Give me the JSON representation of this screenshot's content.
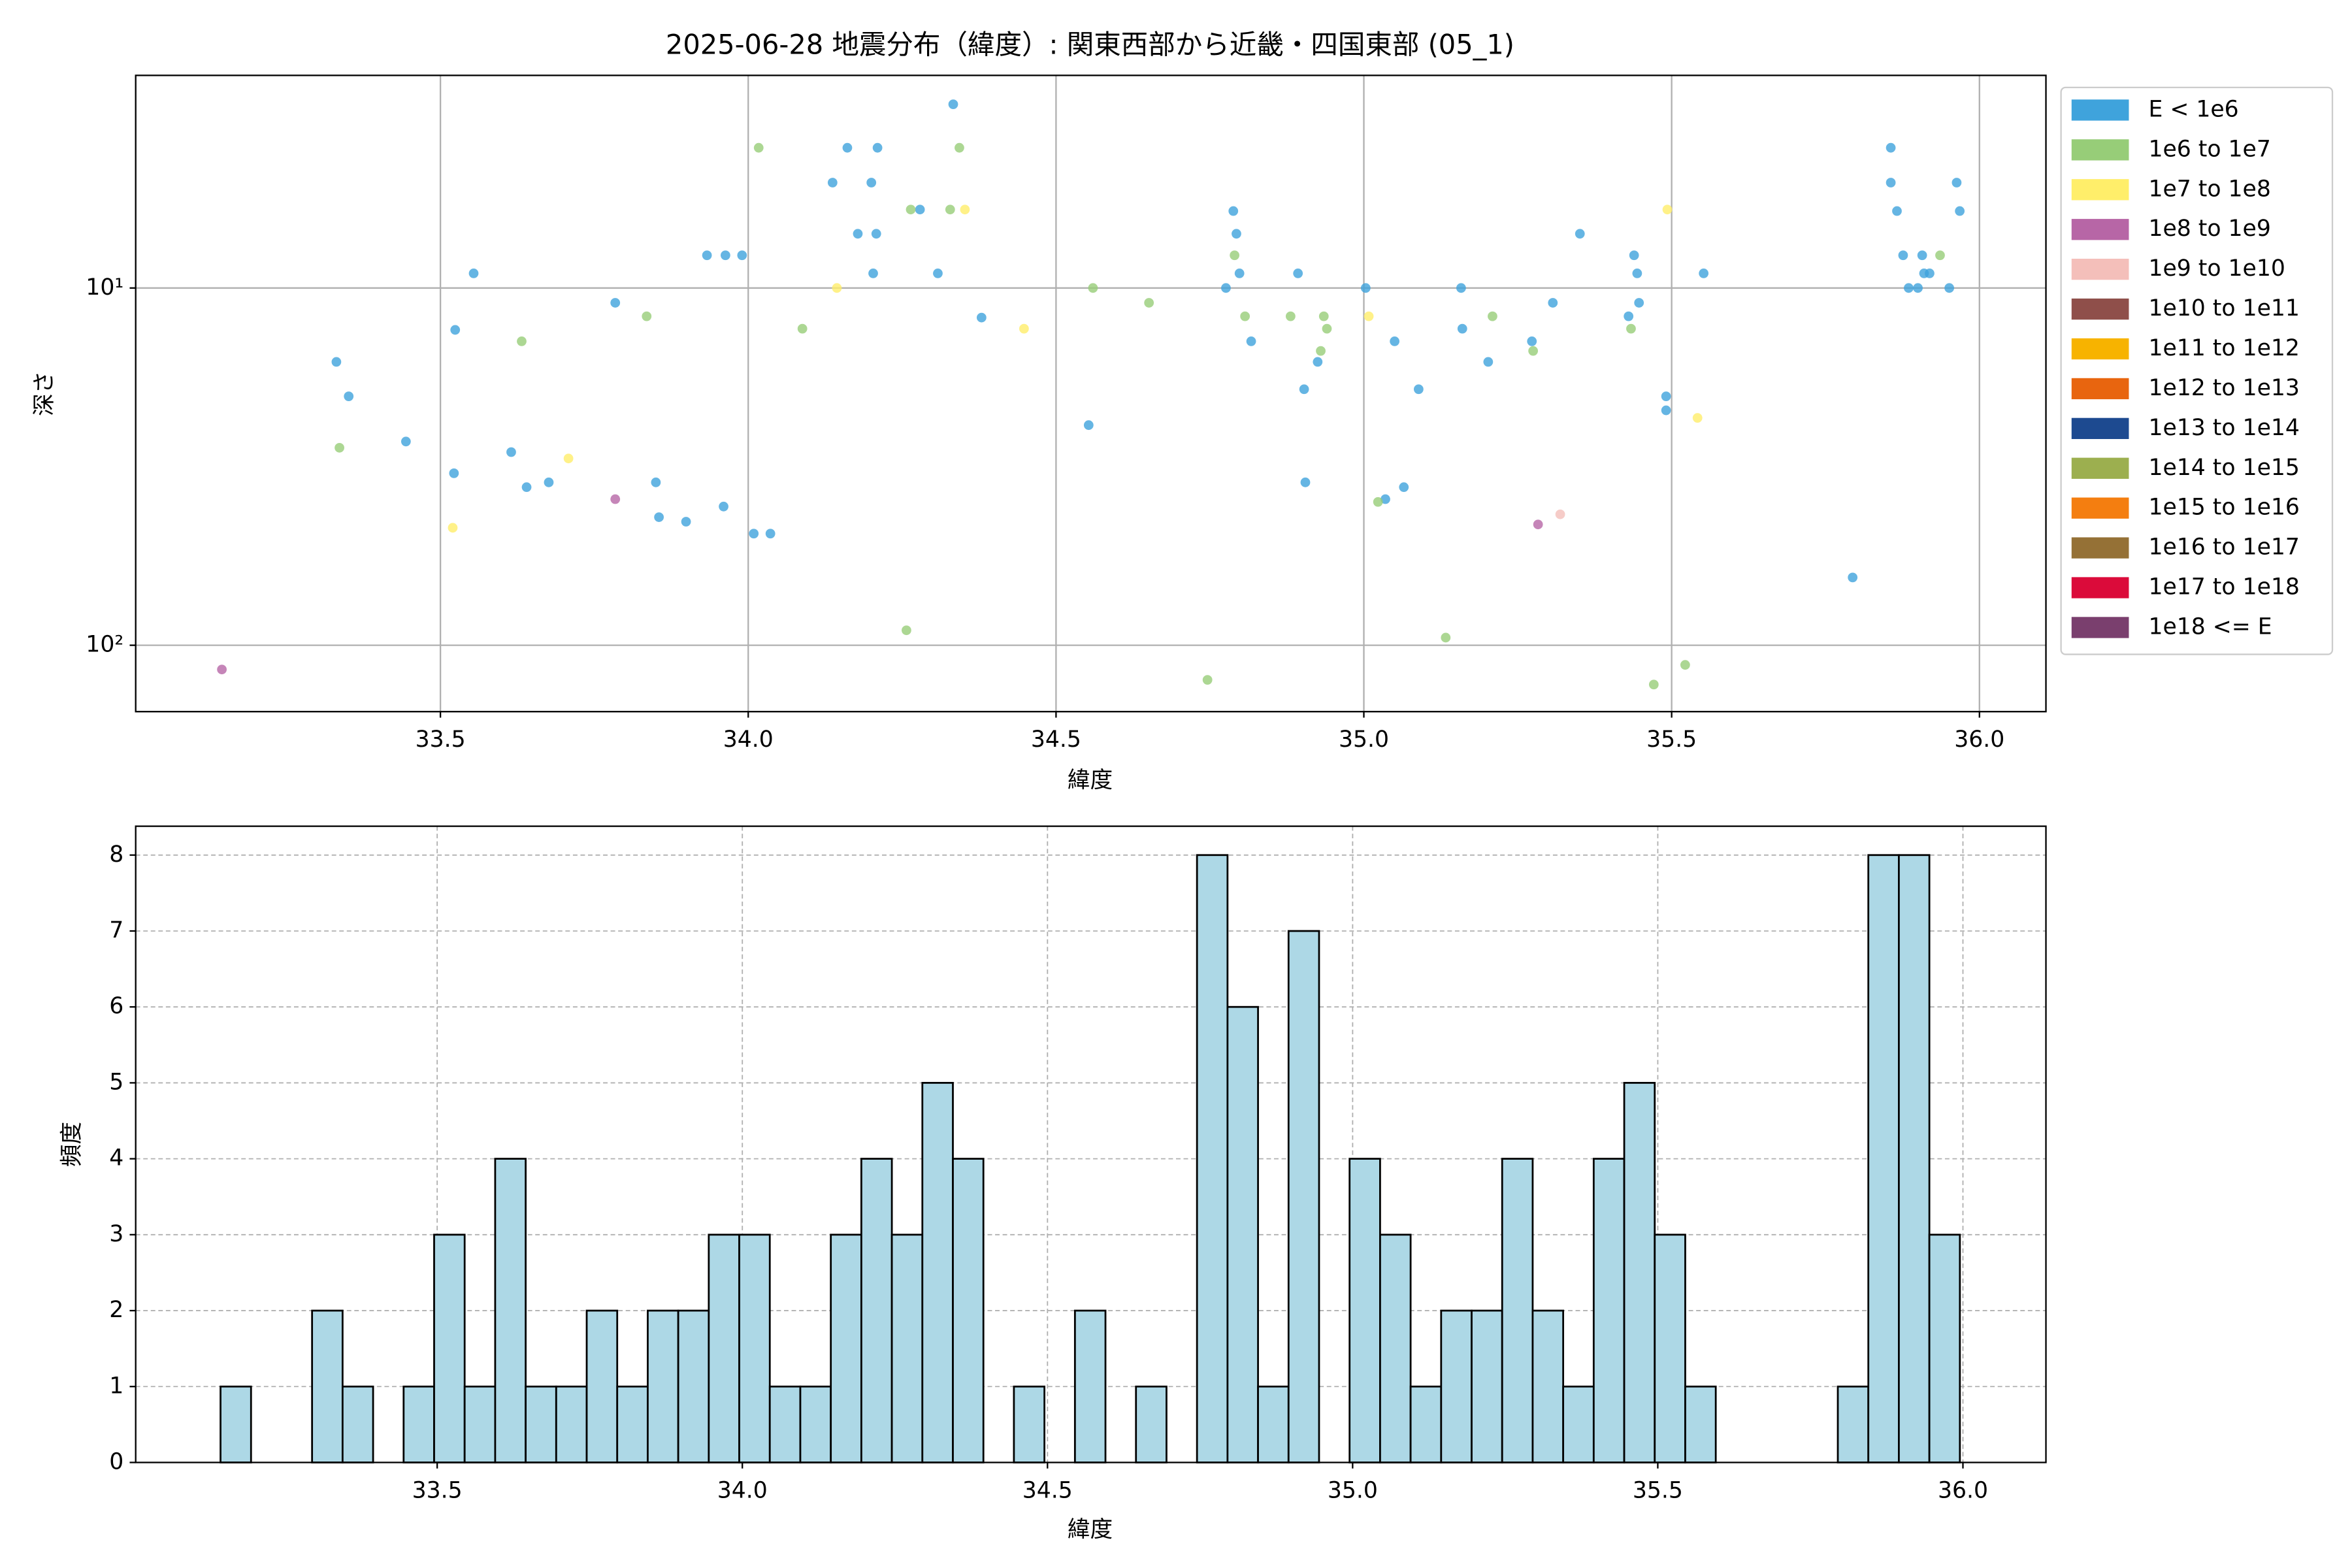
{
  "chart_data": [
    {
      "type": "scatter",
      "title": "2025-06-28 地震分布（緯度）: 関東西部から近畿・四国東部 (05_1)",
      "xlabel": "緯度",
      "ylabel": "深さ",
      "xlim": [
        33.005,
        36.108
      ],
      "ylim": [
        153.4,
        2.54
      ],
      "log_y": true,
      "grid": true,
      "legend": "outside right",
      "xticks": [
        33.5,
        {
          "value": 34,
          "label": "34.0"
        },
        34.5,
        {
          "value": 35,
          "label": "35.0"
        },
        35.5,
        {
          "value": 36,
          "label": "36.0"
        }
      ],
      "yticks": [
        {
          "value": 10,
          "label": "10¹"
        },
        {
          "value": 100,
          "label": "10²"
        }
      ],
      "series": [
        {
          "name": "E < 1e6",
          "color": "#3fa3dc",
          "x": [
            33.331,
            33.351,
            33.444,
            33.522,
            33.524,
            33.554,
            33.615,
            33.64,
            33.676,
            33.784,
            33.85,
            33.855,
            33.899,
            33.933,
            33.96,
            33.963,
            33.99,
            34.009,
            34.036,
            34.137,
            34.161,
            34.178,
            34.2,
            34.203,
            34.208,
            34.21,
            34.279,
            34.308,
            34.333,
            34.379,
            34.553,
            34.776,
            34.788,
            34.793,
            34.798,
            34.817,
            34.893,
            34.903,
            34.905,
            34.925,
            35.003,
            35.05,
            35.035,
            35.065,
            35.089,
            35.158,
            35.16,
            35.202,
            35.273,
            35.307,
            35.351,
            35.43,
            35.439,
            35.444,
            35.447,
            35.491,
            35.491,
            35.552,
            35.794,
            35.856,
            35.856,
            35.866,
            35.876,
            35.885,
            35.9,
            35.907,
            35.91,
            35.919,
            35.951,
            35.963,
            35.968
          ],
          "values": [
            16.1,
            20.1,
            26.9,
            33.0,
            13.1,
            9.1,
            28.8,
            36.1,
            35.0,
            11.0,
            35.0,
            43.8,
            45.1,
            8.1,
            40.9,
            8.1,
            8.1,
            48.7,
            48.7,
            5.07,
            4.05,
            7.05,
            5.07,
            9.1,
            7.05,
            4.05,
            6.03,
            9.1,
            3.06,
            12.1,
            24.2,
            10,
            6.09,
            7.05,
            9.1,
            14.1,
            9.1,
            19.2,
            35.0,
            16.1,
            10,
            14.1,
            39.0,
            36.1,
            19.2,
            10,
            13.0,
            16.1,
            14.1,
            11.0,
            7.05,
            12.0,
            8.1,
            9.1,
            11.0,
            20.1,
            22.0,
            9.1,
            64.6,
            4.05,
            5.07,
            6.09,
            8.1,
            10,
            10,
            8.1,
            9.1,
            9.1,
            10,
            5.07,
            6.09
          ]
        },
        {
          "name": "1e6 to 1e7",
          "color": "#97cd78",
          "x": [
            33.336,
            33.632,
            33.835,
            34.017,
            34.088,
            34.264,
            34.257,
            34.328,
            34.343,
            34.56,
            34.651,
            34.746,
            34.79,
            34.807,
            34.881,
            34.93,
            34.935,
            34.94,
            35.023,
            35.133,
            35.209,
            35.275,
            35.434,
            35.522,
            35.471,
            35.936
          ],
          "values": [
            28.0,
            14.1,
            12.0,
            4.05,
            13.0,
            6.03,
            90.8,
            6.03,
            4.05,
            10,
            11.0,
            125,
            8.1,
            12.0,
            12.0,
            15.0,
            12.0,
            13.0,
            39.7,
            95.2,
            12.0,
            15.0,
            13.0,
            113.5,
            128.8,
            8.1
          ]
        },
        {
          "name": "1e7 to 1e8",
          "color": "#ffee6a",
          "x": [
            33.52,
            33.708,
            34.144,
            34.352,
            34.448,
            35.008,
            35.493,
            35.542
          ],
          "values": [
            46.9,
            30.0,
            10,
            6.03,
            13.0,
            12.0,
            6.03,
            23.1
          ]
        },
        {
          "name": "1e8 to 1e9",
          "color": "#b766a6",
          "x": [
            33.145,
            33.784,
            35.283
          ],
          "values": [
            116.9,
            39.0,
            45.9
          ]
        },
        {
          "name": "1e9 to 1e10",
          "color": "#f4bfba",
          "x": [
            35.319
          ],
          "values": [
            43.0
          ]
        },
        {
          "name": "1e10 to 1e11",
          "color": "#8f4f4a",
          "x": [],
          "values": []
        },
        {
          "name": "1e11 to 1e12",
          "color": "#f7b300",
          "x": [],
          "values": []
        },
        {
          "name": "1e12 to 1e13",
          "color": "#e8650f",
          "x": [],
          "values": []
        },
        {
          "name": "1e13 to 1e14",
          "color": "#1d4a90",
          "x": [],
          "values": []
        },
        {
          "name": "1e14 to 1e15",
          "color": "#9caf4f",
          "x": [],
          "values": []
        },
        {
          "name": "1e15 to 1e16",
          "color": "#f47e10",
          "x": [],
          "values": []
        },
        {
          "name": "1e16 to 1e17",
          "color": "#957136",
          "x": [],
          "values": []
        },
        {
          "name": "1e17 to 1e18",
          "color": "#db0b3a",
          "x": [],
          "values": []
        },
        {
          "name": "1e18 <= E",
          "color": "#7a3f6e",
          "x": [],
          "values": []
        }
      ]
    },
    {
      "type": "histogram",
      "xlabel": "緯度",
      "ylabel": "頻度",
      "color": "#add8e6",
      "edgecolor": "#000000",
      "grid": true,
      "xlim": [
        33.006,
        36.136
      ],
      "ylim": [
        0,
        8.38
      ],
      "xticks": [
        33.5,
        {
          "value": 34,
          "label": "34.0"
        },
        34.5,
        {
          "value": 35,
          "label": "35.0"
        },
        35.5,
        {
          "value": 36,
          "label": "36.0"
        }
      ],
      "yticks": [
        0,
        1,
        2,
        3,
        4,
        5,
        6,
        7,
        8
      ],
      "bins": [
        33.145,
        33.195,
        33.245,
        33.295,
        33.345,
        33.395,
        33.445,
        33.495,
        33.545,
        33.595,
        33.645,
        33.695,
        33.745,
        33.795,
        33.845,
        33.895,
        33.945,
        33.995,
        34.045,
        34.095,
        34.145,
        34.195,
        34.245,
        34.295,
        34.345,
        34.395,
        34.445,
        34.495,
        34.545,
        34.595,
        34.645,
        34.695,
        34.745,
        34.795,
        34.845,
        34.895,
        34.945,
        34.995,
        35.045,
        35.095,
        35.145,
        35.195,
        35.245,
        35.295,
        35.345,
        35.395,
        35.445,
        35.495,
        35.545,
        35.595,
        35.645,
        35.695,
        35.745,
        35.795,
        35.845,
        35.895,
        35.945,
        35.995
      ],
      "values": [
        1,
        0,
        0,
        2,
        1,
        0,
        1,
        3,
        1,
        4,
        1,
        1,
        2,
        1,
        2,
        2,
        3,
        3,
        1,
        1,
        3,
        4,
        3,
        5,
        4,
        0,
        1,
        0,
        2,
        0,
        1,
        0,
        8,
        6,
        1,
        7,
        0,
        4,
        3,
        1,
        2,
        2,
        4,
        2,
        1,
        4,
        5,
        3,
        1,
        0,
        0,
        0,
        0,
        1,
        8,
        8,
        3
      ]
    }
  ]
}
